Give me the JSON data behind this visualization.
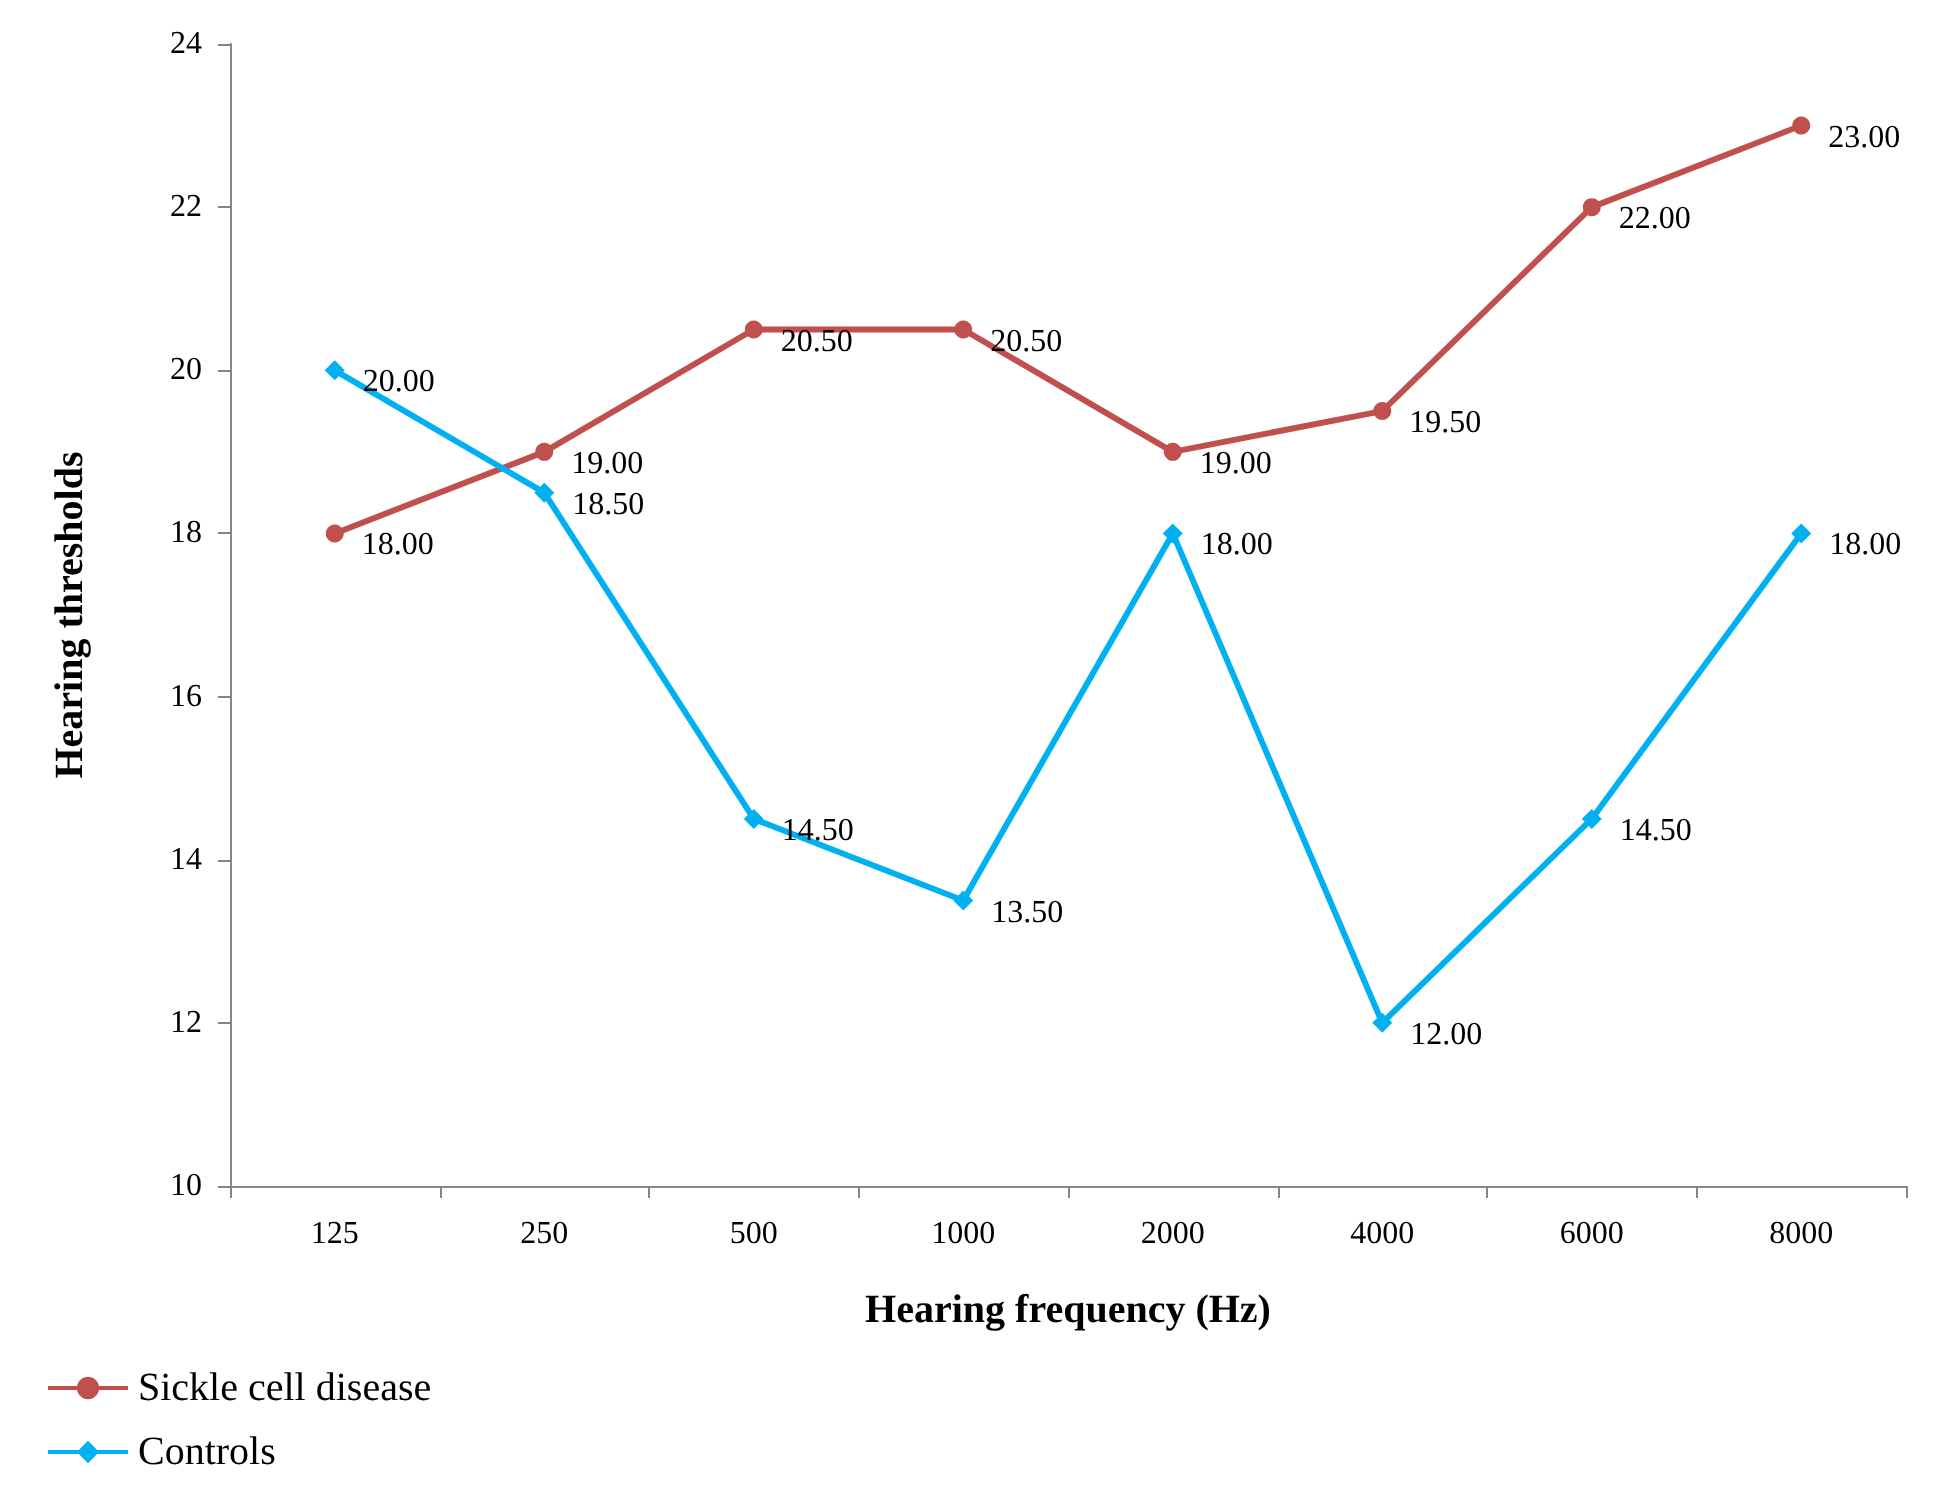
{
  "chart_data": {
    "type": "line",
    "xlabel": "Hearing frequency (Hz)",
    "ylabel": "Hearing thresholds",
    "categories": [
      "125",
      "250",
      "500",
      "1000",
      "2000",
      "4000",
      "6000",
      "8000"
    ],
    "series": [
      {
        "name": "Sickle cell disease",
        "color": "#c0504d",
        "marker": "circle",
        "values": [
          18,
          19,
          20.5,
          20.5,
          19,
          19.5,
          22,
          23
        ],
        "value_labels": [
          "18.00",
          "19.00",
          "20.50",
          "20.50",
          "19.00",
          "19.50",
          "22.00",
          "23.00"
        ]
      },
      {
        "name": "Controls",
        "color": "#00b0f0",
        "marker": "diamond",
        "values": [
          20,
          18.5,
          14.5,
          13.5,
          18,
          12,
          14.5,
          18
        ],
        "value_labels": [
          "20.00",
          "18.50",
          "14.50",
          "13.50",
          "18.00",
          "12.00",
          "14.50",
          "18.00"
        ]
      }
    ],
    "ylim": [
      10,
      24
    ],
    "yticks": [
      10,
      12,
      14,
      16,
      18,
      20,
      22,
      24
    ],
    "grid": false,
    "legend": "bottom left",
    "line_style": "solid"
  }
}
